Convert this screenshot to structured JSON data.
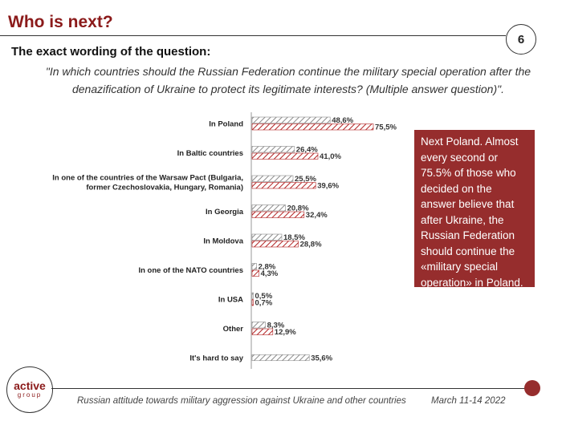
{
  "slide": {
    "title": "Who is next?",
    "page_number": "6",
    "question_heading": "The exact wording of the question:",
    "question_text": "\"In which countries should the Russian Federation continue the military special operation after the denazification of Ukraine to protect its legitimate interests? (Multiple answer question)\".",
    "callout": "Next Poland. Almost every second or 75.5% of those who decided on the answer believe that after Ukraine, the Russian Federation should continue the «military special operation» in Poland.",
    "logo_word": "active",
    "logo_sub": "group",
    "footer_left": "Russian attitude towards military aggression against Ukraine and other countries",
    "footer_right": "March 11-14 2022"
  },
  "colors": {
    "accent": "#8b1a1a",
    "callout_bg": "#962d2d",
    "series1_hatch": "#8a8a8a",
    "series2_hatch": "#b22222"
  },
  "chart_data": {
    "type": "bar",
    "orientation": "horizontal",
    "categories": [
      [
        "In Poland"
      ],
      [
        "In Baltic countries"
      ],
      [
        "In one of the countries of the Warsaw Pact (Bulgaria,",
        "former Czechoslovakia, Hungary, Romania)"
      ],
      [
        "In Georgia"
      ],
      [
        "In Moldova"
      ],
      [
        "In one of the NATO countries"
      ],
      [
        "In USA"
      ],
      [
        "Other"
      ],
      [
        "It's hard to say"
      ]
    ],
    "series": [
      {
        "values": [
          48.6,
          26.4,
          25.5,
          20.8,
          18.5,
          2.8,
          0.5,
          8.3,
          35.6
        ],
        "labels": [
          "48,6%",
          "26,4%",
          "25,5%",
          "20,8%",
          "18,5%",
          "2,8%",
          "0,5%",
          "8,3%",
          "35,6%"
        ]
      },
      {
        "values": [
          75.5,
          41.0,
          39.6,
          32.4,
          28.8,
          4.3,
          0.7,
          12.9,
          null
        ],
        "labels": [
          "75,5%",
          "41,0%",
          "39,6%",
          "32,4%",
          "28,8%",
          "4,3%",
          "0,7%",
          "12,9%",
          ""
        ]
      }
    ],
    "xlim": [
      0,
      100
    ],
    "grid": false,
    "legend": "none"
  }
}
